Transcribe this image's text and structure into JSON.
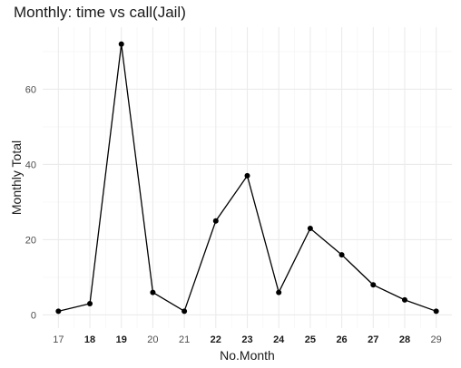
{
  "chart_data": {
    "type": "line",
    "title": "Monthly: time vs call(Jail)",
    "xlabel": "No.Month",
    "ylabel": "Monthly Total",
    "x": [
      17,
      18,
      19,
      20,
      21,
      22,
      23,
      24,
      25,
      26,
      27,
      28,
      29
    ],
    "y": [
      1,
      3,
      72,
      6,
      1,
      25,
      37,
      6,
      23,
      16,
      8,
      4,
      1
    ],
    "xlim": [
      16.5,
      29.5
    ],
    "ylim": [
      -3.5,
      76.5
    ],
    "xticks": [
      "17",
      "18",
      "19",
      "20",
      "21",
      "22",
      "23",
      "24",
      "25",
      "26",
      "27",
      "28",
      "29"
    ],
    "yticks": [
      0,
      20,
      40,
      60
    ],
    "ytick_labels": [
      "0",
      "20",
      "40",
      "60"
    ],
    "grid": true,
    "line_color": "#000000",
    "marker": "point"
  }
}
